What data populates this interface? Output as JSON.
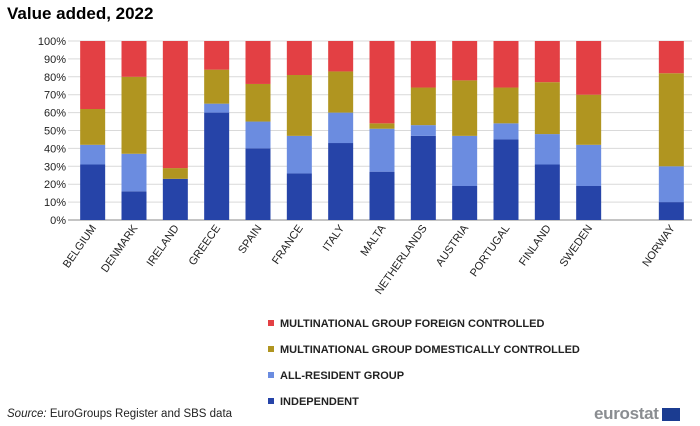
{
  "title": "Value added, 2022",
  "source": {
    "label": "Source:",
    "text": "EuroGroups Register and SBS data"
  },
  "logo": {
    "text": "eurostat",
    "flag_icon": "eu-flag-icon"
  },
  "chart_data": {
    "type": "stacked-bar",
    "title": "Value added, 2022",
    "xlabel": "",
    "ylabel": "",
    "ylim": [
      0,
      100
    ],
    "yticks": [
      "0%",
      "10%",
      "20%",
      "30%",
      "40%",
      "50%",
      "60%",
      "70%",
      "80%",
      "90%",
      "100%"
    ],
    "grid": true,
    "legend_position": "bottom-center",
    "categories": [
      "BELGIUM",
      "DENMARK",
      "IRELAND",
      "GREECE",
      "SPAIN",
      "FRANCE",
      "ITALY",
      "MALTA",
      "NETHERLANDS",
      "AUSTRIA",
      "PORTUGAL",
      "FINLAND",
      "SWEDEN",
      "",
      "NORWAY"
    ],
    "series": [
      {
        "name": "INDEPENDENT",
        "color": "#2644a8",
        "values": [
          31,
          16,
          23,
          60,
          40,
          26,
          43,
          27,
          47,
          19,
          45,
          31,
          19,
          null,
          10
        ]
      },
      {
        "name": "ALL-RESIDENT GROUP",
        "color": "#6b8ce0",
        "values": [
          11,
          21,
          0,
          5,
          15,
          21,
          17,
          24,
          6,
          28,
          9,
          17,
          23,
          null,
          20
        ]
      },
      {
        "name": "MULTINATIONAL GROUP DOMESTICALLY CONTROLLED",
        "color": "#b09520",
        "values": [
          20,
          43,
          6,
          19,
          21,
          34,
          23,
          3,
          21,
          31,
          20,
          29,
          28,
          null,
          52
        ]
      },
      {
        "name": "MULTINATIONAL GROUP FOREIGN CONTROLLED",
        "color": "#e34044",
        "values": [
          38,
          20,
          71,
          16,
          24,
          19,
          17,
          46,
          26,
          22,
          26,
          23,
          30,
          null,
          18
        ]
      }
    ],
    "legend_order": [
      "MULTINATIONAL GROUP FOREIGN CONTROLLED",
      "MULTINATIONAL GROUP DOMESTICALLY CONTROLLED",
      "ALL-RESIDENT GROUP",
      "INDEPENDENT"
    ]
  }
}
